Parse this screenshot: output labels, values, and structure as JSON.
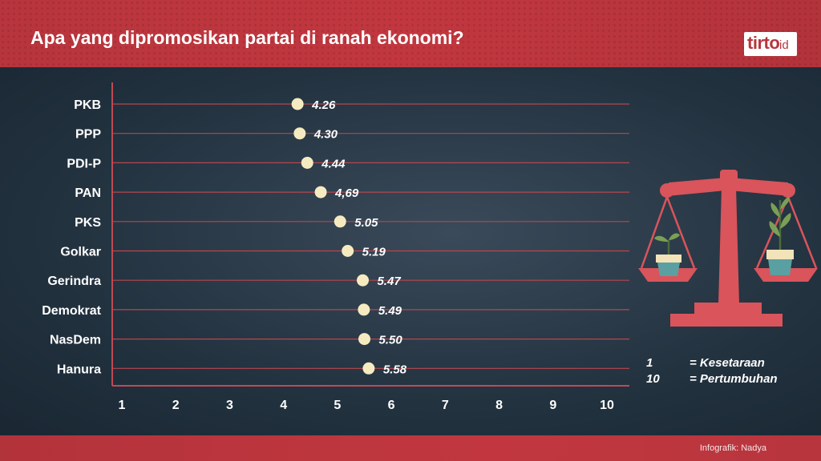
{
  "header": {
    "title": "Apa yang dipromosikan partai di ranah ekonomi?"
  },
  "logo": {
    "name": "tirto",
    "suffix": "id"
  },
  "footer": {
    "credit": "Infografik: Nadya"
  },
  "legend": [
    {
      "value": "1",
      "meaning": "= Kesetaraan"
    },
    {
      "value": "10",
      "meaning": "= Pertumbuhan"
    }
  ],
  "colors": {
    "header": "#b8353d",
    "background": "#22323f",
    "point": "#f6ebc0",
    "gridline": "#b8464e",
    "scale_icon": "#d9545b"
  },
  "icons": [
    "scale-balance-icon",
    "small-plant-pot-icon",
    "large-plant-pot-icon"
  ],
  "chart_data": {
    "type": "scatter",
    "title": "Apa yang dipromosikan partai di ranah ekonomi?",
    "categories": [
      "PKB",
      "PPP",
      "PDI-P",
      "PAN",
      "PKS",
      "Golkar",
      "Gerindra",
      "Demokrat",
      "NasDem",
      "Hanura"
    ],
    "values": [
      4.26,
      4.3,
      4.44,
      4.69,
      5.05,
      5.19,
      5.47,
      5.49,
      5.5,
      5.58
    ],
    "value_labels": [
      "4.26",
      "4.30",
      "4.44",
      "4,69",
      "5.05",
      "5.19",
      "5.47",
      "5.49",
      "5.50",
      "5.58"
    ],
    "x_ticks": [
      "1",
      "2",
      "3",
      "4",
      "5",
      "6",
      "7",
      "8",
      "9",
      "10"
    ],
    "xlim": [
      1,
      10
    ],
    "grid": true,
    "legend_position": "right"
  }
}
